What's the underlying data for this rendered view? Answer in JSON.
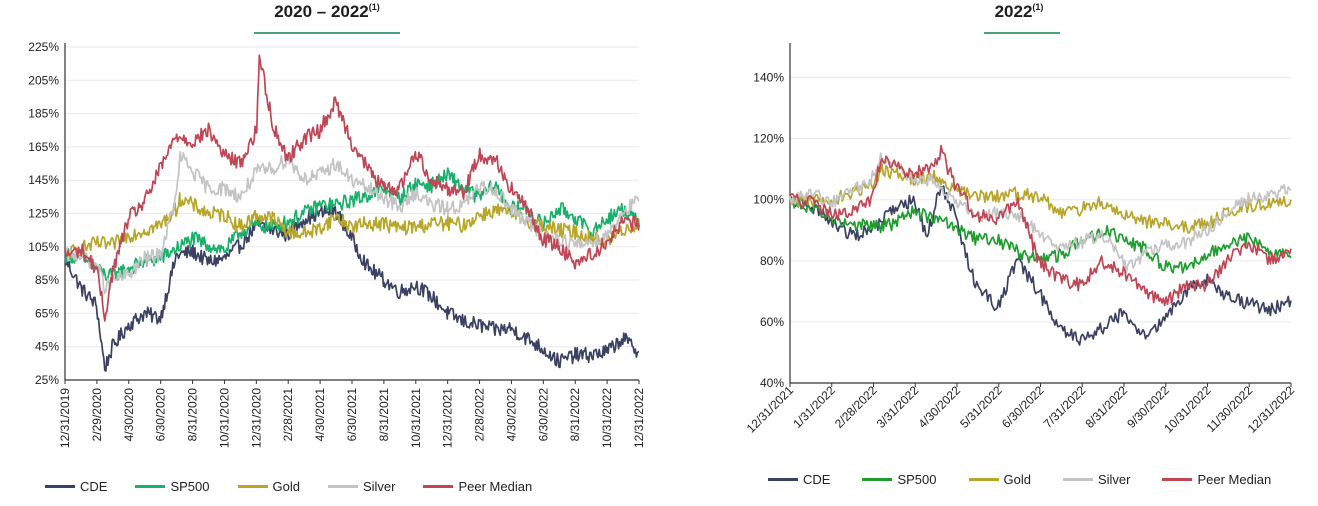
{
  "colors": {
    "CDE": "#3b4162",
    "SP500_left": "#19b06b",
    "SP500_right": "#1e9e2e",
    "Gold": "#b7a62a",
    "Silver": "#c4c4c4",
    "PeerMedian": "#c04655",
    "title_rule": "#4aa27c",
    "grid": "#e9e9ee",
    "axis": "#333333"
  },
  "chart_data": [
    {
      "type": "line",
      "title": "2020 – 2022",
      "title_footnote": "(1)",
      "xlabel": "",
      "ylabel": "",
      "ylim": [
        25,
        225
      ],
      "yticks": [
        25,
        45,
        65,
        85,
        105,
        125,
        145,
        165,
        185,
        205,
        225
      ],
      "ytick_labels": [
        "25%",
        "45%",
        "65%",
        "85%",
        "105%",
        "125%",
        "145%",
        "165%",
        "185%",
        "205%",
        "225%"
      ],
      "x_start": "2019-12-31",
      "x_end": "2022-12-31",
      "xtick_labels": [
        "12/31/2019",
        "2/29/2020",
        "4/30/2020",
        "6/30/2020",
        "8/31/2020",
        "10/31/2020",
        "12/31/2020",
        "2/28/2021",
        "4/30/2021",
        "6/30/2021",
        "8/31/2021",
        "10/31/2021",
        "12/31/2021",
        "2/28/2022",
        "4/30/2022",
        "6/30/2022",
        "8/31/2022",
        "10/31/2022",
        "12/31/2022"
      ],
      "grid": true,
      "legend_position": "bottom",
      "series": [
        {
          "name": "CDE",
          "color_key": "CDE",
          "x": [
            "2019-12-31",
            "2020-01-31",
            "2020-02-29",
            "2020-03-16",
            "2020-03-31",
            "2020-04-30",
            "2020-05-31",
            "2020-06-30",
            "2020-07-31",
            "2020-08-31",
            "2020-09-30",
            "2020-10-31",
            "2020-11-30",
            "2020-12-31",
            "2021-01-31",
            "2021-02-28",
            "2021-03-31",
            "2021-04-30",
            "2021-05-31",
            "2021-06-30",
            "2021-07-31",
            "2021-08-31",
            "2021-09-30",
            "2021-10-31",
            "2021-11-30",
            "2021-12-31",
            "2022-01-31",
            "2022-02-28",
            "2022-03-31",
            "2022-04-30",
            "2022-05-31",
            "2022-06-30",
            "2022-07-31",
            "2022-08-31",
            "2022-09-30",
            "2022-10-31",
            "2022-11-30",
            "2022-12-31"
          ],
          "y": [
            98,
            80,
            70,
            32,
            45,
            58,
            65,
            62,
            100,
            102,
            96,
            98,
            106,
            118,
            115,
            112,
            122,
            125,
            127,
            110,
            93,
            85,
            78,
            82,
            75,
            65,
            60,
            58,
            55,
            56,
            50,
            44,
            36,
            40,
            40,
            42,
            50,
            42
          ]
        },
        {
          "name": "SP500",
          "color_key": "SP500_left",
          "x": [
            "2019-12-31",
            "2020-01-31",
            "2020-02-29",
            "2020-03-23",
            "2020-04-30",
            "2020-05-31",
            "2020-06-30",
            "2020-07-31",
            "2020-08-31",
            "2020-09-30",
            "2020-10-31",
            "2020-11-30",
            "2020-12-31",
            "2021-01-31",
            "2021-02-28",
            "2021-03-31",
            "2021-04-30",
            "2021-05-31",
            "2021-06-30",
            "2021-07-31",
            "2021-08-31",
            "2021-09-30",
            "2021-10-31",
            "2021-11-30",
            "2021-12-31",
            "2022-01-31",
            "2022-02-28",
            "2022-03-31",
            "2022-04-30",
            "2022-05-31",
            "2022-06-30",
            "2022-07-31",
            "2022-08-31",
            "2022-09-30",
            "2022-10-31",
            "2022-11-30",
            "2022-12-31"
          ],
          "y": [
            100,
            99,
            92,
            87,
            92,
            96,
            98,
            104,
            110,
            106,
            103,
            114,
            118,
            117,
            120,
            125,
            130,
            130,
            133,
            136,
            140,
            134,
            143,
            142,
            148,
            140,
            135,
            142,
            128,
            128,
            118,
            128,
            123,
            113,
            122,
            128,
            119
          ]
        },
        {
          "name": "Gold",
          "color_key": "Gold",
          "x": [
            "2019-12-31",
            "2020-01-31",
            "2020-02-29",
            "2020-03-31",
            "2020-04-30",
            "2020-05-31",
            "2020-06-30",
            "2020-07-31",
            "2020-08-07",
            "2020-08-31",
            "2020-09-30",
            "2020-10-31",
            "2020-11-30",
            "2020-12-31",
            "2021-01-31",
            "2021-02-28",
            "2021-03-31",
            "2021-04-30",
            "2021-05-31",
            "2021-06-30",
            "2021-07-31",
            "2021-08-31",
            "2021-09-30",
            "2021-10-31",
            "2021-11-30",
            "2021-12-31",
            "2022-01-31",
            "2022-02-28",
            "2022-03-31",
            "2022-04-30",
            "2022-05-31",
            "2022-06-30",
            "2022-07-31",
            "2022-08-31",
            "2022-09-30",
            "2022-10-31",
            "2022-11-30",
            "2022-12-31"
          ],
          "y": [
            100,
            104,
            107,
            106,
            112,
            115,
            118,
            128,
            134,
            130,
            125,
            124,
            117,
            124,
            122,
            114,
            113,
            116,
            123,
            117,
            119,
            119,
            116,
            117,
            119,
            119,
            118,
            124,
            127,
            125,
            121,
            118,
            115,
            114,
            110,
            108,
            115,
            119
          ]
        },
        {
          "name": "Silver",
          "color_key": "Silver",
          "x": [
            "2019-12-31",
            "2020-01-31",
            "2020-02-29",
            "2020-03-18",
            "2020-03-31",
            "2020-04-30",
            "2020-05-31",
            "2020-06-30",
            "2020-07-31",
            "2020-08-07",
            "2020-08-31",
            "2020-09-30",
            "2020-10-31",
            "2020-11-30",
            "2020-12-31",
            "2021-01-31",
            "2021-02-28",
            "2021-03-31",
            "2021-04-30",
            "2021-05-31",
            "2021-06-30",
            "2021-07-31",
            "2021-08-31",
            "2021-09-30",
            "2021-10-31",
            "2021-11-30",
            "2021-12-31",
            "2022-01-31",
            "2022-02-28",
            "2022-03-31",
            "2022-04-30",
            "2022-05-31",
            "2022-06-30",
            "2022-07-31",
            "2022-08-31",
            "2022-09-30",
            "2022-10-31",
            "2022-11-30",
            "2022-12-31"
          ],
          "y": [
            100,
            100,
            94,
            80,
            85,
            88,
            98,
            100,
            136,
            160,
            150,
            140,
            140,
            135,
            150,
            152,
            158,
            146,
            148,
            155,
            145,
            140,
            135,
            128,
            138,
            130,
            128,
            130,
            140,
            140,
            128,
            120,
            112,
            110,
            106,
            108,
            112,
            126,
            133
          ]
        },
        {
          "name": "Peer Median",
          "color_key": "PeerMedian",
          "x": [
            "2019-12-31",
            "2020-01-31",
            "2020-02-29",
            "2020-03-16",
            "2020-03-31",
            "2020-04-30",
            "2020-05-31",
            "2020-06-30",
            "2020-07-31",
            "2020-08-31",
            "2020-09-30",
            "2020-10-31",
            "2020-11-30",
            "2020-12-31",
            "2021-01-05",
            "2021-01-31",
            "2021-02-28",
            "2021-03-31",
            "2021-04-30",
            "2021-05-31",
            "2021-06-30",
            "2021-07-31",
            "2021-08-31",
            "2021-09-30",
            "2021-10-31",
            "2021-11-30",
            "2021-12-31",
            "2022-01-31",
            "2022-02-28",
            "2022-03-31",
            "2022-04-30",
            "2022-05-31",
            "2022-06-30",
            "2022-07-31",
            "2022-08-31",
            "2022-09-30",
            "2022-10-31",
            "2022-11-30",
            "2022-12-31"
          ],
          "y": [
            100,
            103,
            92,
            63,
            90,
            122,
            132,
            152,
            172,
            168,
            175,
            160,
            155,
            175,
            220,
            178,
            158,
            170,
            175,
            192,
            168,
            152,
            140,
            140,
            162,
            145,
            140,
            138,
            160,
            158,
            140,
            128,
            110,
            105,
            96,
            100,
            108,
            120,
            118
          ]
        }
      ]
    },
    {
      "type": "line",
      "title": "2022",
      "title_footnote": "(1)",
      "xlabel": "",
      "ylabel": "",
      "ylim": [
        40,
        150
      ],
      "yticks": [
        40,
        60,
        80,
        100,
        120,
        140
      ],
      "ytick_labels": [
        "40%",
        "60%",
        "80%",
        "100%",
        "120%",
        "140%"
      ],
      "x_start": "2021-12-31",
      "x_end": "2022-12-31",
      "xtick_labels": [
        "12/31/2021",
        "1/31/2022",
        "2/28/2022",
        "3/31/2022",
        "4/30/2022",
        "5/31/2022",
        "6/30/2022",
        "7/31/2022",
        "8/31/2022",
        "9/30/2022",
        "10/31/2022",
        "11/30/2022",
        "12/31/2022"
      ],
      "grid": true,
      "legend_position": "bottom",
      "series": [
        {
          "name": "CDE",
          "color_key": "CDE",
          "x": [
            "2021-12-31",
            "2022-01-15",
            "2022-01-31",
            "2022-02-15",
            "2022-02-28",
            "2022-03-15",
            "2022-03-31",
            "2022-04-10",
            "2022-04-20",
            "2022-04-30",
            "2022-05-15",
            "2022-05-31",
            "2022-06-15",
            "2022-06-30",
            "2022-07-15",
            "2022-07-31",
            "2022-08-15",
            "2022-08-31",
            "2022-09-15",
            "2022-09-30",
            "2022-10-15",
            "2022-10-31",
            "2022-11-15",
            "2022-11-30",
            "2022-12-15",
            "2022-12-31"
          ],
          "y": [
            100,
            98,
            93,
            88,
            90,
            96,
            100,
            88,
            105,
            95,
            72,
            65,
            80,
            70,
            58,
            54,
            58,
            63,
            56,
            60,
            70,
            74,
            68,
            66,
            64,
            67
          ]
        },
        {
          "name": "SP500",
          "color_key": "SP500_right",
          "x": [
            "2021-12-31",
            "2022-01-15",
            "2022-01-31",
            "2022-02-15",
            "2022-02-28",
            "2022-03-15",
            "2022-03-31",
            "2022-04-15",
            "2022-04-30",
            "2022-05-15",
            "2022-05-31",
            "2022-06-15",
            "2022-06-30",
            "2022-07-15",
            "2022-07-31",
            "2022-08-16",
            "2022-08-31",
            "2022-09-15",
            "2022-09-30",
            "2022-10-15",
            "2022-10-31",
            "2022-11-15",
            "2022-11-30",
            "2022-12-15",
            "2022-12-31"
          ],
          "y": [
            100,
            97,
            94,
            92,
            91,
            92,
            96,
            94,
            91,
            87,
            87,
            83,
            80,
            82,
            86,
            90,
            87,
            84,
            78,
            78,
            82,
            86,
            87,
            83,
            81
          ]
        },
        {
          "name": "Gold",
          "color_key": "Gold",
          "x": [
            "2021-12-31",
            "2022-01-15",
            "2022-01-31",
            "2022-02-15",
            "2022-02-28",
            "2022-03-08",
            "2022-03-31",
            "2022-04-15",
            "2022-04-30",
            "2022-05-15",
            "2022-05-31",
            "2022-06-15",
            "2022-06-30",
            "2022-07-15",
            "2022-07-31",
            "2022-08-15",
            "2022-08-31",
            "2022-09-15",
            "2022-09-30",
            "2022-10-15",
            "2022-10-31",
            "2022-11-15",
            "2022-11-30",
            "2022-12-15",
            "2022-12-31"
          ],
          "y": [
            100,
            100,
            100,
            102,
            105,
            110,
            107,
            108,
            104,
            101,
            101,
            102,
            101,
            96,
            97,
            99,
            95,
            93,
            92,
            91,
            92,
            96,
            98,
            99,
            100
          ]
        },
        {
          "name": "Silver",
          "color_key": "Silver",
          "x": [
            "2021-12-31",
            "2022-01-15",
            "2022-01-31",
            "2022-02-15",
            "2022-02-28",
            "2022-03-08",
            "2022-03-31",
            "2022-04-15",
            "2022-04-30",
            "2022-05-15",
            "2022-05-31",
            "2022-06-15",
            "2022-06-30",
            "2022-07-15",
            "2022-07-31",
            "2022-08-15",
            "2022-08-31",
            "2022-09-01",
            "2022-09-15",
            "2022-09-30",
            "2022-10-15",
            "2022-10-31",
            "2022-11-15",
            "2022-11-30",
            "2022-12-15",
            "2022-12-31"
          ],
          "y": [
            100,
            102,
            99,
            103,
            107,
            114,
            107,
            106,
            100,
            94,
            96,
            95,
            90,
            84,
            86,
            89,
            80,
            78,
            82,
            85,
            86,
            90,
            96,
            100,
            102,
            103
          ]
        },
        {
          "name": "Peer Median",
          "color_key": "PeerMedian",
          "x": [
            "2021-12-31",
            "2022-01-15",
            "2022-01-31",
            "2022-02-15",
            "2022-02-28",
            "2022-03-08",
            "2022-03-31",
            "2022-04-15",
            "2022-04-20",
            "2022-04-30",
            "2022-05-15",
            "2022-05-31",
            "2022-06-15",
            "2022-06-30",
            "2022-07-15",
            "2022-07-31",
            "2022-08-15",
            "2022-08-31",
            "2022-09-15",
            "2022-09-30",
            "2022-10-15",
            "2022-10-31",
            "2022-11-15",
            "2022-11-30",
            "2022-12-15",
            "2022-12-31"
          ],
          "y": [
            100,
            99,
            95,
            96,
            100,
            114,
            108,
            112,
            116,
            105,
            95,
            94,
            100,
            80,
            74,
            72,
            80,
            76,
            70,
            66,
            72,
            72,
            80,
            86,
            80,
            84
          ]
        }
      ]
    }
  ]
}
